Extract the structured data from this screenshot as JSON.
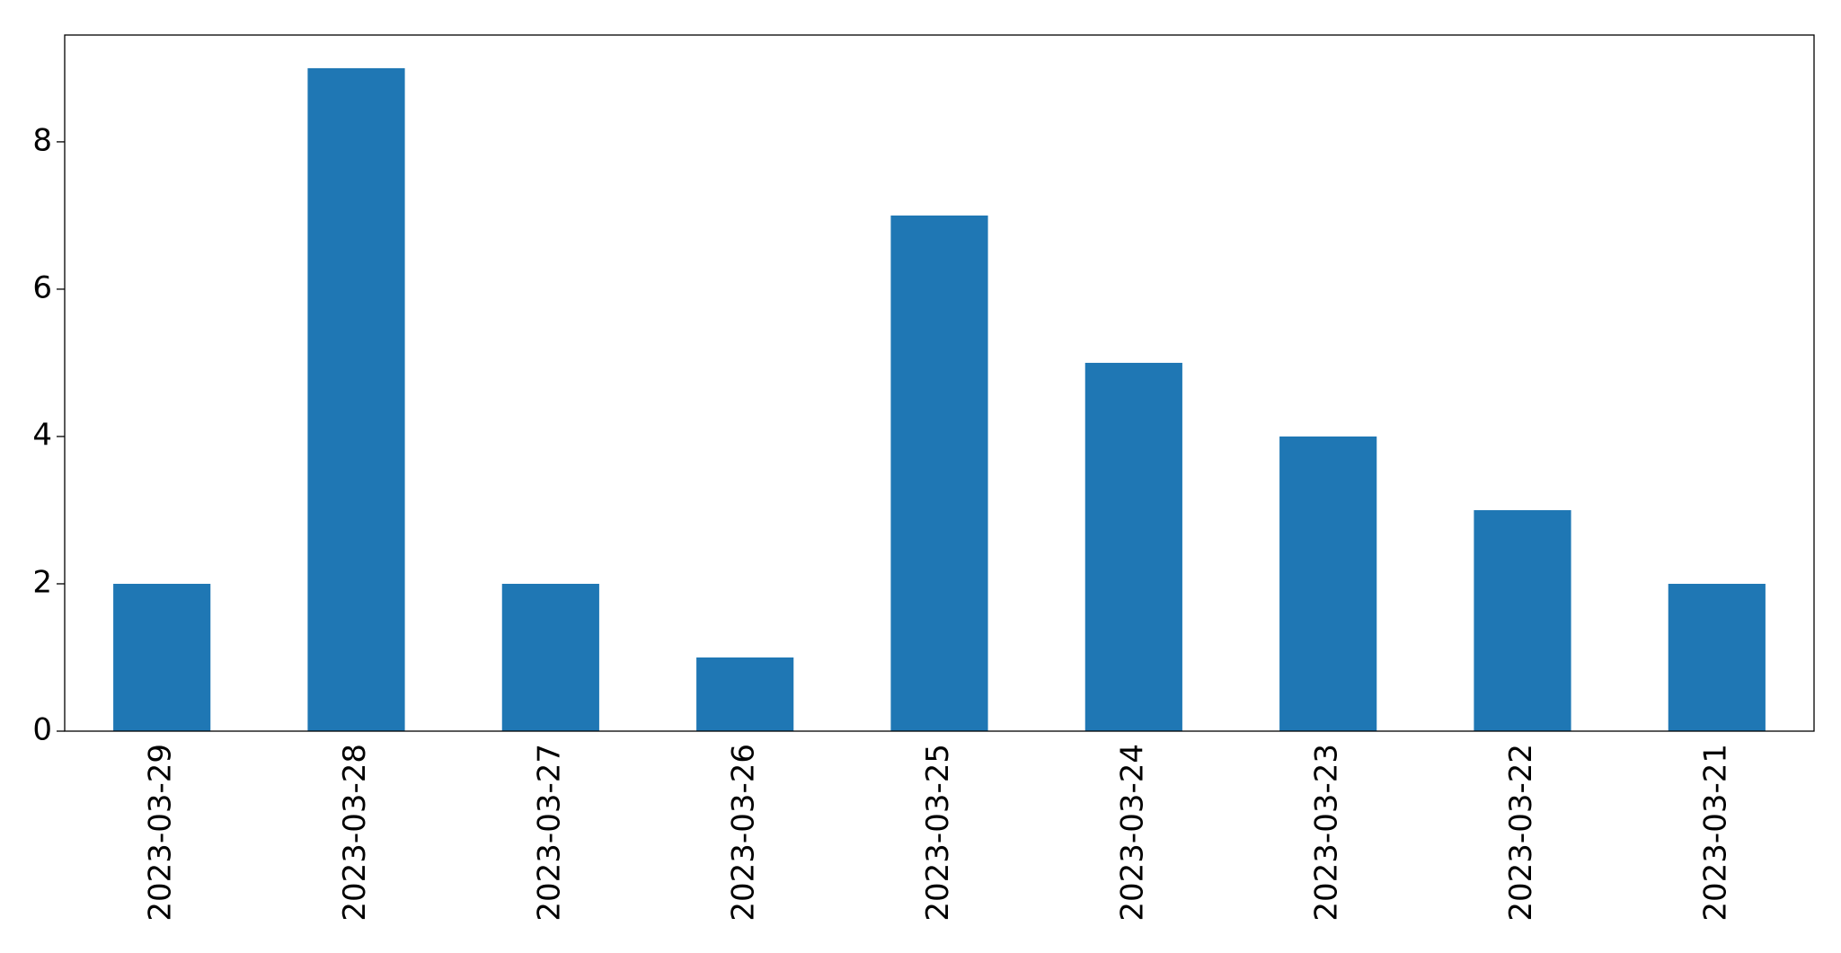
{
  "chart_data": {
    "type": "bar",
    "categories": [
      "2023-03-29",
      "2023-03-28",
      "2023-03-27",
      "2023-03-26",
      "2023-03-25",
      "2023-03-24",
      "2023-03-23",
      "2023-03-22",
      "2023-03-21"
    ],
    "values": [
      2,
      9,
      2,
      1,
      7,
      5,
      4,
      3,
      2
    ],
    "color": "#1f77b4",
    "ylim": [
      0,
      9.45
    ],
    "yticks": [
      0,
      2,
      4,
      6,
      8
    ],
    "grid": false
  }
}
